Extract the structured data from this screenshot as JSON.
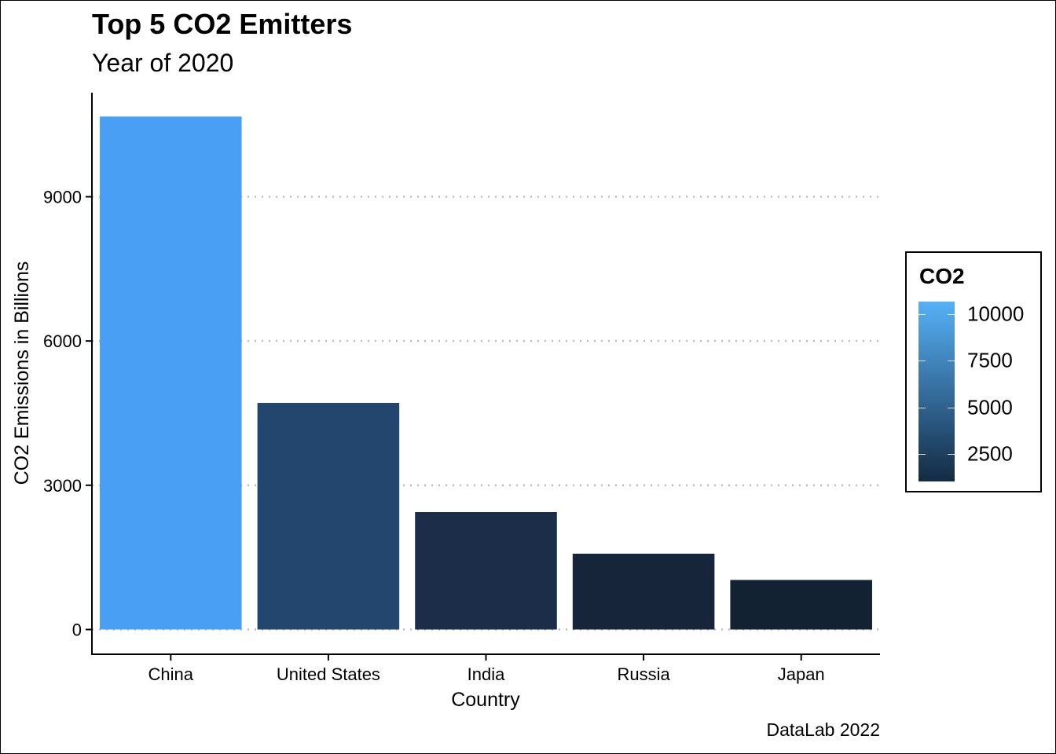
{
  "title": "Top 5 CO2 Emitters",
  "subtitle": "Year of 2020",
  "caption": "DataLab 2022",
  "legend": {
    "title": "CO2",
    "labels": [
      "10000",
      "7500",
      "5000",
      "2500"
    ],
    "values": [
      10000,
      7500,
      5000,
      2500
    ],
    "range": [
      1031,
      10668
    ],
    "color_low": "#132B43",
    "color_high": "#56B1F7"
  },
  "chart_data": {
    "type": "bar",
    "categories": [
      "China",
      "United States",
      "India",
      "Russia",
      "Japan"
    ],
    "values": [
      10668,
      4713,
      2442,
      1577,
      1031
    ],
    "xlabel": "Country",
    "ylabel": "CO2 Emissions in Billions",
    "yticks": [
      0,
      3000,
      6000,
      9000
    ],
    "ylim": [
      -520,
      11200
    ],
    "grid": "horizontal dotted",
    "colors": [
      "#489FF4",
      "#23466E",
      "#1B2D48",
      "#162539",
      "#132233"
    ]
  }
}
